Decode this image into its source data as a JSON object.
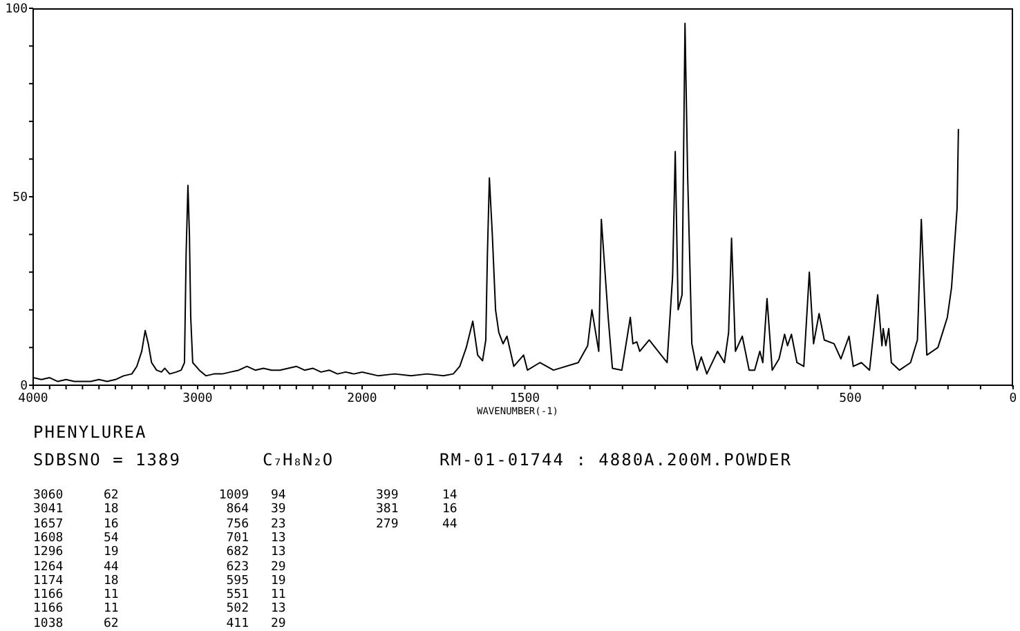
{
  "chart_data": [
    {
      "type": "line",
      "title": "PHENYLUREA",
      "subtitle": "SDBSNO = 1389",
      "annotations": [
        "C₇H₈N₂O",
        "RM-01-01744 : 4880A.200M.POWDER",
        "3060 62",
        "3041 18",
        "1657 16",
        "1608 54",
        "1296 19",
        "1264 44",
        "1174 18",
        "1166 11",
        "1166 11",
        "1038 62",
        "1009 94",
        "864 39",
        "756 23",
        "701 13",
        "682 13",
        "623 29",
        "595 19",
        "551 11",
        "502 13",
        "411 29",
        "399 14",
        "381 16",
        "279 44"
      ],
      "xlim": [
        4000,
        2000
      ],
      "ylim": [
        0,
        100
      ],
      "xticks": [
        4000,
        {
          "value": 3900,
          "label": null
        },
        {
          "value": 3800,
          "label": null
        },
        {
          "value": 3700,
          "label": null
        },
        {
          "value": 3600,
          "label": null
        },
        {
          "value": 3500,
          "label": null
        },
        {
          "value": 3400,
          "label": null
        },
        {
          "value": 3300,
          "label": null
        },
        {
          "value": 3200,
          "label": null
        },
        {
          "value": 3100,
          "label": null
        },
        3000,
        {
          "value": 2900,
          "label": null
        },
        {
          "value": 2800,
          "label": null
        },
        {
          "value": 2700,
          "label": null
        },
        {
          "value": 2600,
          "label": null
        },
        {
          "value": 2500,
          "label": null
        },
        {
          "value": 2400,
          "label": null
        },
        {
          "value": 2300,
          "label": null
        },
        {
          "value": 2200,
          "label": null
        },
        {
          "value": 2100,
          "label": null
        }
      ],
      "yticks": [
        0,
        {
          "value": 10,
          "label": null
        },
        {
          "value": 20,
          "label": null
        },
        {
          "value": 30,
          "label": null
        },
        {
          "value": 40,
          "label": null
        },
        50,
        {
          "value": 60,
          "label": null
        },
        {
          "value": 70,
          "label": null
        },
        {
          "value": 80,
          "label": null
        },
        {
          "value": 90,
          "label": null
        },
        100
      ],
      "series": [
        {
          "color": "#000000",
          "x": [
            4000,
            3950,
            3900,
            3850,
            3800,
            3750,
            3700,
            3650,
            3600,
            3550,
            3500,
            3450,
            3400,
            3370,
            3340,
            3319,
            3300,
            3280,
            3250,
            3220,
            3200,
            3170,
            3130,
            3100,
            3080,
            3070,
            3059,
            3050,
            3042,
            3030,
            3010,
            2990,
            2950,
            2900,
            2850,
            2800,
            2750,
            2700,
            2650,
            2600,
            2550,
            2500,
            2450,
            2400,
            2350,
            2300,
            2250,
            2200,
            2150,
            2100,
            2050,
            2000
          ],
          "values": [
            2,
            1.5,
            2,
            1,
            1.5,
            1,
            1,
            1,
            1.5,
            1,
            1.5,
            2.5,
            3,
            5,
            9,
            14.5,
            11,
            6,
            4,
            3.5,
            4.5,
            3,
            3.5,
            4,
            6,
            35,
            53,
            40,
            18,
            6,
            5,
            4,
            2.5,
            3,
            3,
            3.5,
            4,
            5,
            4,
            4.5,
            4,
            4,
            4.5,
            5,
            4,
            4.5,
            3.5,
            4,
            3,
            3.5,
            3,
            3.5
          ]
        }
      ]
    },
    {
      "type": "line",
      "xlabel": "WAVENUMBER(-1)",
      "xlim": [
        2000,
        0
      ],
      "ylim": [
        0,
        100
      ],
      "tick_labels": "x",
      "xticks": [
        2000,
        {
          "value": 1900,
          "label": null
        },
        {
          "value": 1800,
          "label": null
        },
        {
          "value": 1700,
          "label": null
        },
        {
          "value": 1600,
          "label": null
        },
        1500,
        {
          "value": 1400,
          "label": null
        },
        {
          "value": 1300,
          "label": null
        },
        {
          "value": 1200,
          "label": null
        },
        {
          "value": 1100,
          "label": null
        },
        {
          "value": 1000,
          "label": null
        },
        {
          "value": 900,
          "label": null
        },
        {
          "value": 800,
          "label": null
        },
        {
          "value": 700,
          "label": null
        },
        {
          "value": 600,
          "label": null
        },
        500,
        {
          "value": 400,
          "label": null
        },
        {
          "value": 300,
          "label": null
        },
        {
          "value": 200,
          "label": null
        },
        {
          "value": 100,
          "label": null
        },
        0
      ],
      "series": [
        {
          "color": "#000000",
          "x": [
            2000,
            1950,
            1900,
            1850,
            1800,
            1750,
            1720,
            1700,
            1680,
            1660,
            1645,
            1630,
            1620,
            1615,
            1609,
            1600,
            1590,
            1580,
            1567,
            1555,
            1534,
            1504,
            1492,
            1454,
            1412,
            1336,
            1307,
            1294,
            1273,
            1265,
            1244,
            1231,
            1202,
            1176,
            1168,
            1156,
            1147,
            1118,
            1063,
            1046,
            1038,
            1029,
            1017,
            1008,
            1000,
            987,
            971,
            958,
            941,
            908,
            887,
            874,
            865,
            853,
            832,
            811,
            794,
            778,
            769,
            756,
            740,
            719,
            702,
            693,
            681,
            664,
            643,
            626,
            613,
            596,
            580,
            550,
            529,
            504,
            491,
            466,
            441,
            416,
            403,
            399,
            391,
            382,
            374,
            349,
            315,
            294,
            282,
            265,
            231,
            202,
            189,
            172,
            168
          ],
          "values": [
            3.5,
            2.5,
            3,
            2.5,
            3,
            2.5,
            3,
            5,
            10,
            17,
            8,
            6.5,
            12,
            35,
            55,
            40,
            20,
            14,
            11,
            13,
            5,
            8,
            4,
            6,
            4,
            6,
            10.5,
            20,
            9,
            44,
            18,
            4.5,
            4,
            18,
            11,
            11.5,
            9,
            12,
            6,
            29,
            62,
            20,
            24,
            96,
            56,
            11,
            4,
            7.5,
            3,
            9,
            6,
            14,
            39,
            9,
            13,
            4,
            4,
            9,
            6,
            23,
            4,
            7,
            13.5,
            10.5,
            13.5,
            6,
            5,
            30,
            11,
            19,
            12,
            11,
            7,
            13,
            5,
            6,
            4,
            24,
            10.5,
            15,
            10.5,
            15,
            6,
            4,
            6,
            12,
            44,
            8,
            10,
            18,
            26,
            47,
            68
          ]
        }
      ]
    }
  ]
}
